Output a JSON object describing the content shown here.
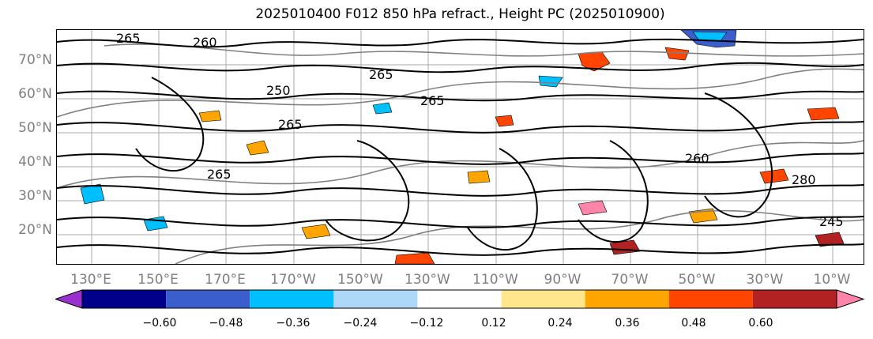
{
  "title": "2025010400 F012 850 hPa refract., Height PC (2025010900)",
  "lat_labels": [
    "70°N",
    "60°N",
    "50°N",
    "40°N",
    "30°N",
    "20°N"
  ],
  "lon_labels": [
    "130°E",
    "150°E",
    "170°E",
    "170°W",
    "150°W",
    "130°W",
    "110°W",
    "90°W",
    "70°W",
    "50°W",
    "30°W",
    "10°W"
  ],
  "contour_labels": [
    "265",
    "260",
    "265",
    "250",
    "265",
    "265",
    "265",
    "260",
    "245",
    "280"
  ],
  "colorbar": {
    "levels": [
      "−0.60",
      "−0.48",
      "−0.36",
      "−0.24",
      "−0.12",
      "0.12",
      "0.24",
      "0.36",
      "0.48",
      "0.60"
    ],
    "colors": [
      "#9932cc",
      "#00008b",
      "#3a5fcd",
      "#00bfff",
      "#add8f7",
      "#ffffff",
      "#ffe68a",
      "#ffa500",
      "#ff4500",
      "#b22222",
      "#ff85a8"
    ]
  },
  "colors": {
    "frame": "#000000",
    "grid": "#a0a0a0",
    "contour": "#000000",
    "height_contour": "#808080",
    "tick_text": "#7f7f7f"
  }
}
